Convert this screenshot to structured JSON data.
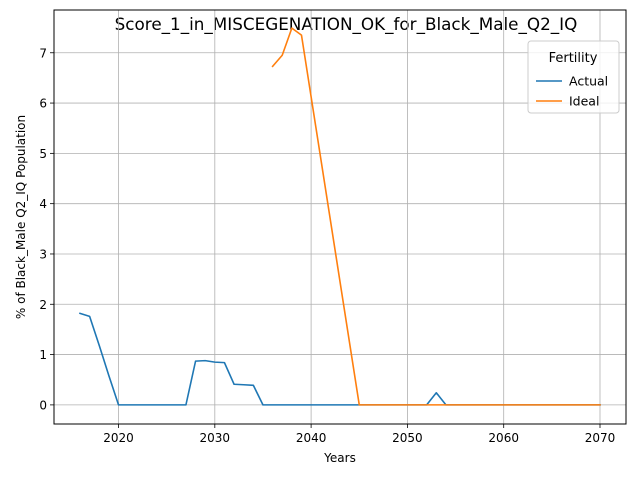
{
  "chart_data": {
    "type": "line",
    "title": "Score_1_in_MISCEGENATION_OK_for_Black_Male_Q2_IQ",
    "xlabel": "Years",
    "ylabel": "% of Black_Male Q2_IQ Population",
    "xlim": [
      2013.3,
      2072.7
    ],
    "ylim": [
      -0.38,
      7.85
    ],
    "xticks": [
      2020,
      2030,
      2040,
      2050,
      2060,
      2070
    ],
    "yticks": [
      0,
      1,
      2,
      3,
      4,
      5,
      6,
      7
    ],
    "grid": true,
    "legend": {
      "title": "Fertility",
      "position": "top-right"
    },
    "series": [
      {
        "name": "Actual",
        "color": "#1f77b4",
        "points": [
          [
            2016,
            1.82
          ],
          [
            2017,
            1.76
          ],
          [
            2018,
            1.18
          ],
          [
            2019,
            0.58
          ],
          [
            2020,
            0.0
          ],
          [
            2021,
            0.0
          ],
          [
            2022,
            0.0
          ],
          [
            2023,
            0.0
          ],
          [
            2024,
            0.0
          ],
          [
            2025,
            0.0
          ],
          [
            2026,
            0.0
          ],
          [
            2027,
            0.0
          ],
          [
            2028,
            0.87
          ],
          [
            2029,
            0.88
          ],
          [
            2030,
            0.85
          ],
          [
            2031,
            0.84
          ],
          [
            2032,
            0.41
          ],
          [
            2033,
            0.4
          ],
          [
            2034,
            0.39
          ],
          [
            2035,
            0.0
          ],
          [
            2036,
            0.0
          ],
          [
            2040,
            0.0
          ],
          [
            2045,
            0.0
          ],
          [
            2050,
            0.0
          ],
          [
            2052,
            0.0
          ],
          [
            2053,
            0.24
          ],
          [
            2054,
            0.0
          ],
          [
            2055,
            0.0
          ],
          [
            2060,
            0.0
          ],
          [
            2065,
            0.0
          ],
          [
            2070,
            0.0
          ]
        ]
      },
      {
        "name": "Ideal",
        "color": "#ff7f0e",
        "points": [
          [
            2036,
            6.73
          ],
          [
            2037,
            6.95
          ],
          [
            2038,
            7.49
          ],
          [
            2039,
            7.35
          ],
          [
            2045,
            0.0
          ],
          [
            2050,
            0.0
          ],
          [
            2055,
            0.0
          ],
          [
            2060,
            0.0
          ],
          [
            2065,
            0.0
          ],
          [
            2070,
            0.0
          ]
        ]
      }
    ]
  }
}
